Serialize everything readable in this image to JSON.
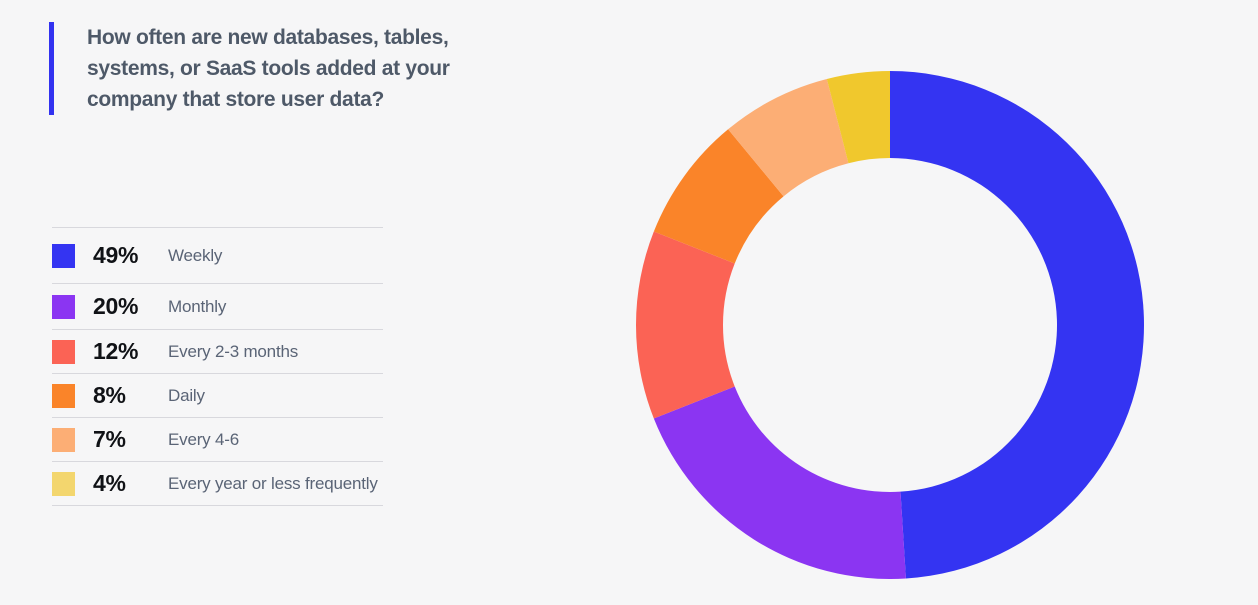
{
  "background_color": "#F6F6F7",
  "title": {
    "text": "How often are new databases, tables, systems, or SaaS tools added at your company that store user data?",
    "accent_bar_color": "#3232F0",
    "text_color": "#4E5968"
  },
  "chart_data": {
    "type": "pie",
    "subtype": "donut",
    "title": "How often are new databases, tables, systems, or SaaS tools added at your company that store user data?",
    "start_angle_deg": -90,
    "direction": "clockwise",
    "inner_radius_ratio": 0.6575,
    "legend_position": "left",
    "total_pct": 100,
    "slices": [
      {
        "label": "Weekly",
        "value_pct": 49,
        "pct_label": "49%",
        "color": "#3434F2",
        "legend_swatch_color": "#3434F2"
      },
      {
        "label": "Monthly",
        "value_pct": 20,
        "pct_label": "20%",
        "color": "#8B35F2",
        "legend_swatch_color": "#8B35F2"
      },
      {
        "label": "Every 2-3 months",
        "value_pct": 12,
        "pct_label": "12%",
        "color": "#FB6355",
        "legend_swatch_color": "#FB6355"
      },
      {
        "label": "Daily",
        "value_pct": 8,
        "pct_label": "8%",
        "color": "#FA8429",
        "legend_swatch_color": "#FA8429"
      },
      {
        "label": "Every 4-6",
        "value_pct": 7,
        "pct_label": "7%",
        "color": "#FCAE75",
        "legend_swatch_color": "#FCAE75"
      },
      {
        "label": "Every year or less frequently",
        "value_pct": 4,
        "pct_label": "4%",
        "color": "#F0C82D",
        "legend_swatch_color": "#F3D66E"
      }
    ]
  },
  "legend_style": {
    "divider_color": "#D8D8DD",
    "percent_color": "#101216",
    "label_color": "#5A6476"
  }
}
